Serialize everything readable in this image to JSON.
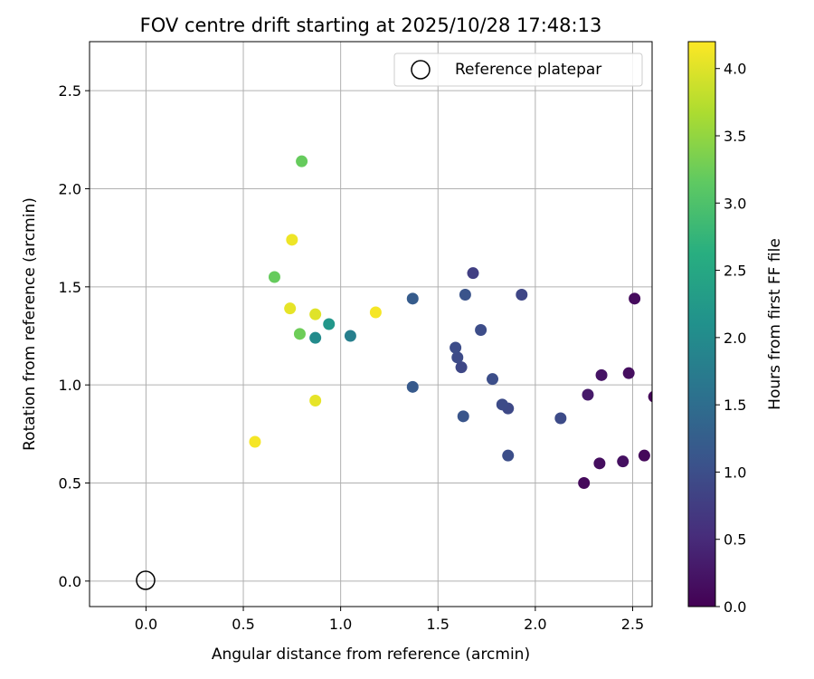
{
  "chart_data": {
    "type": "scatter",
    "title": "FOV centre drift starting at 2025/10/28 17:48:13",
    "xlabel": "Angular distance from reference (arcmin)",
    "ylabel": "Rotation from reference (arcmin)",
    "xlim": [
      -0.29,
      2.6
    ],
    "ylim": [
      -0.13,
      2.75
    ],
    "xticks": [
      0.0,
      0.5,
      1.0,
      1.5,
      2.0,
      2.5
    ],
    "xtick_labels": [
      "0.0",
      "0.5",
      "1.0",
      "1.5",
      "2.0",
      "2.5"
    ],
    "yticks": [
      0.0,
      0.5,
      1.0,
      1.5,
      2.0,
      2.5
    ],
    "ytick_labels": [
      "0.0",
      "0.5",
      "1.0",
      "1.5",
      "2.0",
      "2.5"
    ],
    "grid": true,
    "legend": {
      "placement": "top-right",
      "label": "Reference platepar"
    },
    "reference_point": {
      "x": 0.0,
      "y": 0.0
    },
    "colorbar": {
      "label": "Hours from first FF file",
      "range": [
        0.0,
        4.2
      ],
      "ticks": [
        0.0,
        0.5,
        1.0,
        1.5,
        2.0,
        2.5,
        3.0,
        3.5,
        4.0
      ],
      "tick_labels": [
        "0.0",
        "0.5",
        "1.0",
        "1.5",
        "2.0",
        "2.5",
        "3.0",
        "3.5",
        "4.0"
      ],
      "colormap": "viridis"
    },
    "points": [
      {
        "x": 2.61,
        "y": 0.94,
        "c": 0.05
      },
      {
        "x": 2.56,
        "y": 0.64,
        "c": 0.08
      },
      {
        "x": 2.51,
        "y": 1.44,
        "c": 0.12
      },
      {
        "x": 2.48,
        "y": 1.06,
        "c": 0.15
      },
      {
        "x": 2.45,
        "y": 0.61,
        "c": 0.18
      },
      {
        "x": 2.34,
        "y": 1.05,
        "c": 0.22
      },
      {
        "x": 2.33,
        "y": 0.6,
        "c": 0.15
      },
      {
        "x": 2.27,
        "y": 0.95,
        "c": 0.3
      },
      {
        "x": 2.25,
        "y": 0.5,
        "c": 0.1
      },
      {
        "x": 2.13,
        "y": 0.83,
        "c": 0.95
      },
      {
        "x": 1.93,
        "y": 1.46,
        "c": 0.88
      },
      {
        "x": 1.86,
        "y": 0.88,
        "c": 0.92
      },
      {
        "x": 1.86,
        "y": 0.64,
        "c": 1.0
      },
      {
        "x": 1.83,
        "y": 0.9,
        "c": 0.95
      },
      {
        "x": 1.78,
        "y": 1.03,
        "c": 1.0
      },
      {
        "x": 1.72,
        "y": 1.28,
        "c": 0.98
      },
      {
        "x": 1.68,
        "y": 1.57,
        "c": 0.78
      },
      {
        "x": 1.64,
        "y": 1.46,
        "c": 1.08
      },
      {
        "x": 1.63,
        "y": 0.84,
        "c": 1.1
      },
      {
        "x": 1.62,
        "y": 1.09,
        "c": 0.9
      },
      {
        "x": 1.6,
        "y": 1.14,
        "c": 0.95
      },
      {
        "x": 1.59,
        "y": 1.19,
        "c": 0.98
      },
      {
        "x": 1.37,
        "y": 1.44,
        "c": 1.22
      },
      {
        "x": 1.37,
        "y": 0.99,
        "c": 1.18
      },
      {
        "x": 1.05,
        "y": 1.25,
        "c": 1.8
      },
      {
        "x": 0.94,
        "y": 1.31,
        "c": 2.2
      },
      {
        "x": 0.87,
        "y": 1.24,
        "c": 2.0
      },
      {
        "x": 0.87,
        "y": 1.36,
        "c": 4.0
      },
      {
        "x": 0.87,
        "y": 0.92,
        "c": 4.05
      },
      {
        "x": 0.8,
        "y": 2.14,
        "c": 3.2
      },
      {
        "x": 0.79,
        "y": 1.26,
        "c": 3.25
      },
      {
        "x": 0.75,
        "y": 1.74,
        "c": 4.1
      },
      {
        "x": 0.74,
        "y": 1.39,
        "c": 4.05
      },
      {
        "x": 0.66,
        "y": 1.55,
        "c": 3.2
      },
      {
        "x": 0.56,
        "y": 0.71,
        "c": 4.15
      },
      {
        "x": 1.18,
        "y": 1.37,
        "c": 4.15
      }
    ]
  }
}
